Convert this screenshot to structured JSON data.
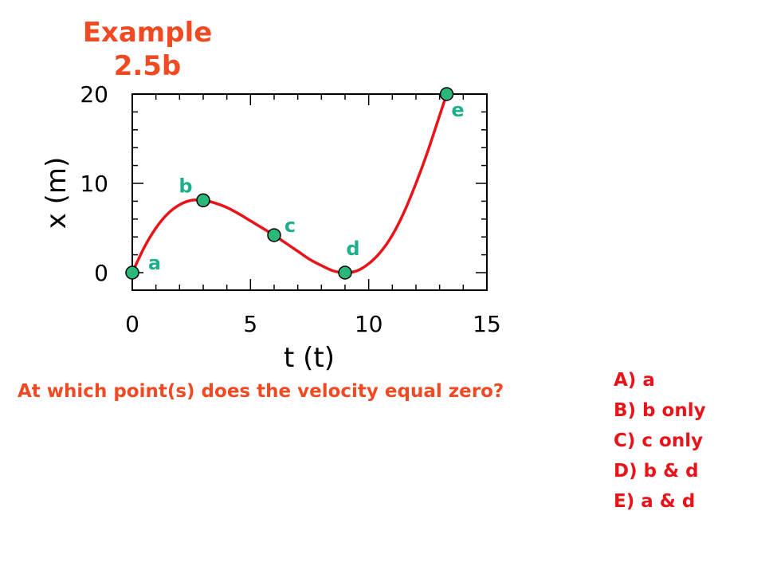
{
  "title_lines": [
    "Example",
    "2.5b"
  ],
  "question": "At which point(s) does the velocity equal zero?",
  "choices": [
    "A)  a",
    "B)  b only",
    "C)  c only",
    "D)  b & d",
    "E)  a & d"
  ],
  "colors": {
    "title": "#f04a23",
    "question": "#f04a23",
    "choices": "#e8141a",
    "curve": "#e8141a",
    "point_fill": "#2ab87a",
    "point_label": "#1faf8c",
    "axis": "#000000"
  },
  "chart_data": {
    "type": "line",
    "xlabel": "t  (t)",
    "ylabel": "x  (m)",
    "xlim": [
      0,
      15
    ],
    "ylim": [
      0,
      20
    ],
    "xticks": [
      0,
      5,
      10,
      15
    ],
    "yticks": [
      0,
      10,
      20
    ],
    "curve": {
      "x": [
        0,
        0.5,
        1,
        1.5,
        2,
        2.5,
        3,
        3.5,
        4,
        4.5,
        5,
        5.5,
        6,
        6.5,
        7,
        7.5,
        8,
        8.5,
        9,
        9.5,
        10,
        10.5,
        11,
        11.5,
        12,
        12.5,
        13,
        13.3
      ],
      "y": [
        0,
        2.8,
        5.0,
        6.6,
        7.6,
        8.1,
        8.1,
        7.8,
        7.3,
        6.6,
        5.8,
        5.0,
        4.2,
        3.3,
        2.4,
        1.5,
        0.8,
        0.2,
        0,
        0.2,
        1.0,
        2.3,
        4.2,
        6.8,
        10.0,
        13.6,
        17.6,
        20.0
      ]
    },
    "points": [
      {
        "label": "a",
        "x": 0,
        "y": 0
      },
      {
        "label": "b",
        "x": 3,
        "y": 8.1
      },
      {
        "label": "c",
        "x": 6,
        "y": 4.2
      },
      {
        "label": "d",
        "x": 9,
        "y": 0
      },
      {
        "label": "e",
        "x": 13.3,
        "y": 20
      }
    ],
    "grid": false
  }
}
